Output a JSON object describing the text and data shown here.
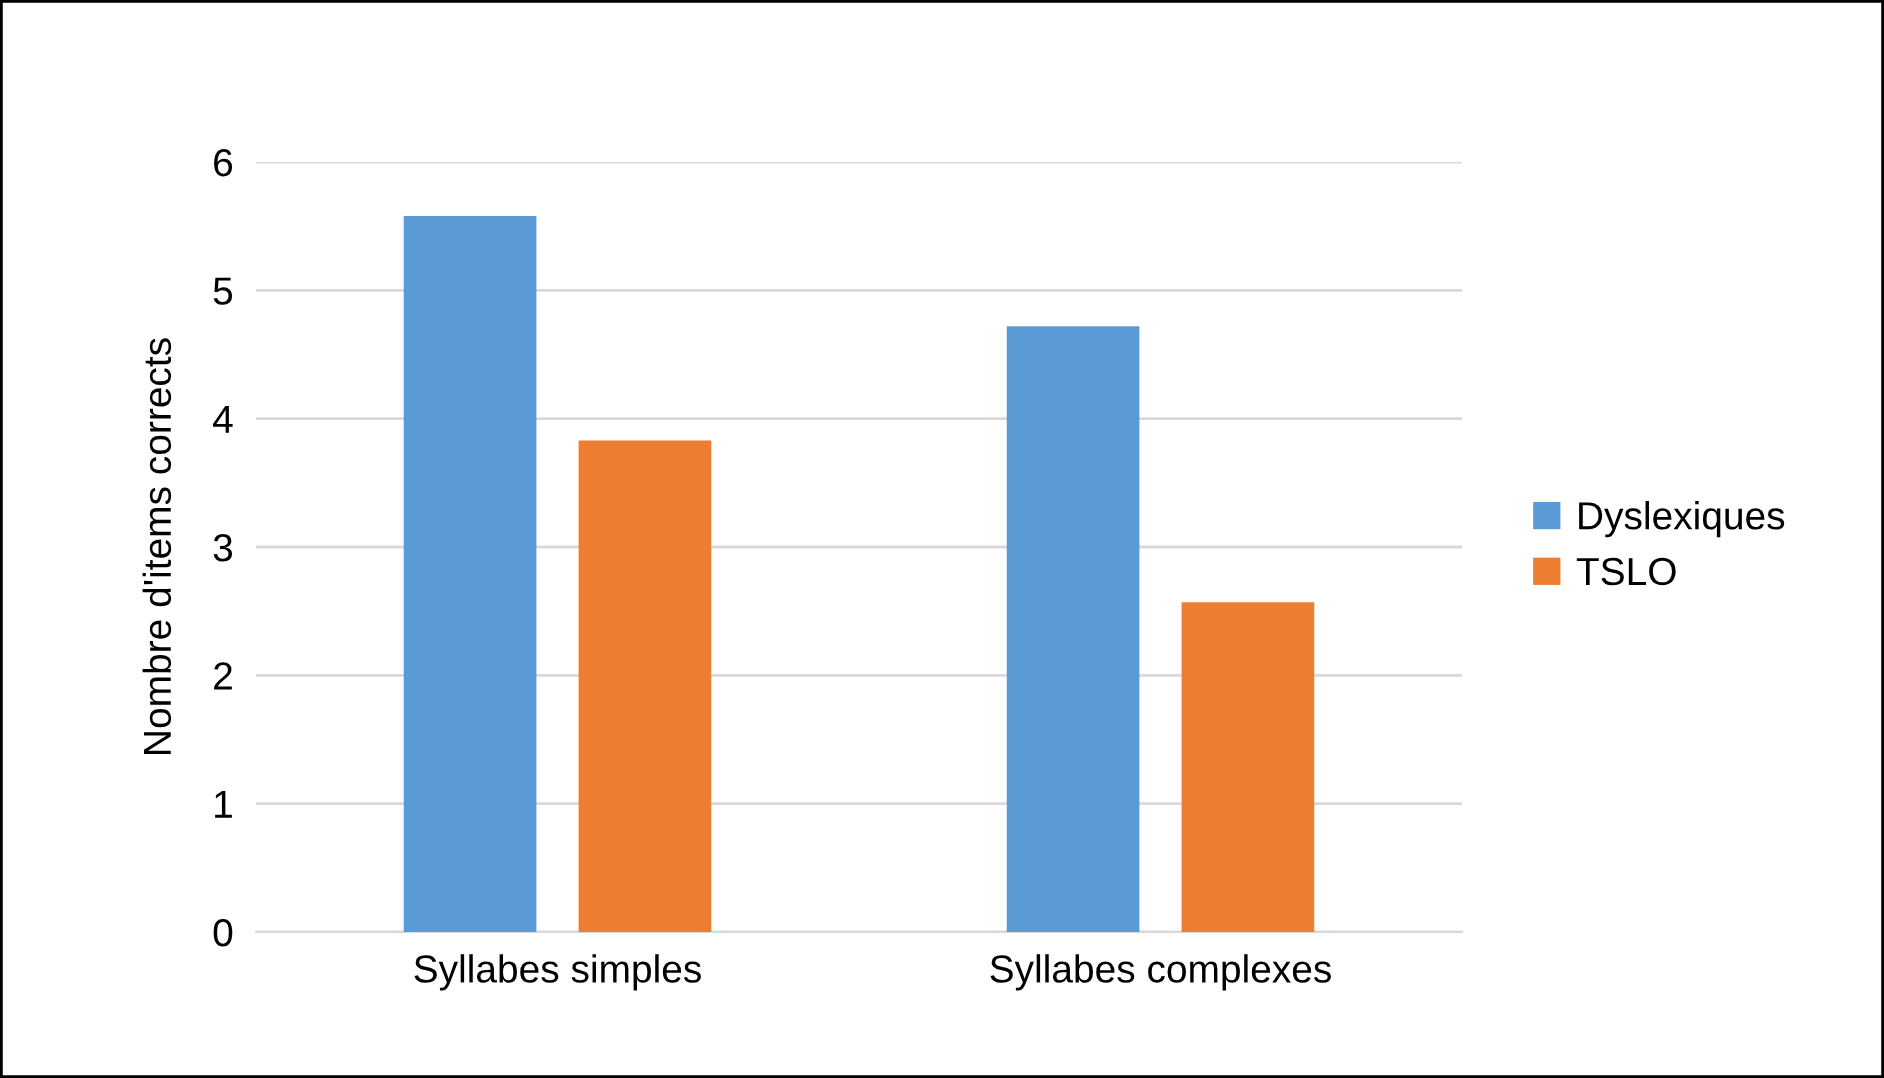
{
  "chart_data": {
    "type": "bar",
    "ylabel": "Nombre d'items corrects",
    "categories": [
      "Syllabes simples",
      "Syllabes complexes"
    ],
    "series": [
      {
        "name": "Dyslexiques",
        "color": "#5b9bd5",
        "values": [
          5.58,
          4.72
        ]
      },
      {
        "name": "TSLO",
        "color": "#ed7d31",
        "values": [
          3.83,
          2.57
        ]
      }
    ],
    "ylim": [
      0,
      6
    ],
    "yticks": [
      0,
      1,
      2,
      3,
      4,
      5,
      6
    ],
    "grid": "y",
    "legend": "right"
  }
}
